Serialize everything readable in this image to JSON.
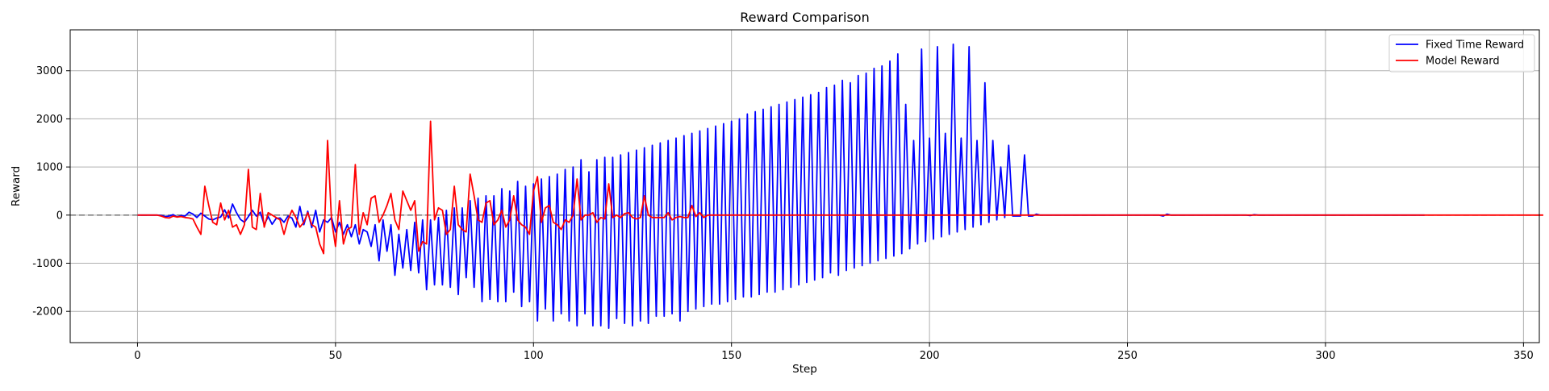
{
  "chart_data": {
    "type": "line",
    "title": "Reward Comparison",
    "xlabel": "Step",
    "ylabel": "Reward",
    "xlim": [
      -17,
      354
    ],
    "ylim": [
      -2650,
      3850
    ],
    "xticks": [
      0,
      50,
      100,
      150,
      200,
      250,
      300,
      350
    ],
    "yticks": [
      -2000,
      -1000,
      0,
      1000,
      2000,
      3000
    ],
    "grid": true,
    "legend_position": "top-right",
    "reference_line": {
      "y": 0,
      "style": "dashed",
      "color": "#808080"
    },
    "series": [
      {
        "name": "Fixed Time Reward",
        "color": "#0000ff",
        "x_start": 0,
        "values": [
          0,
          0,
          0,
          0,
          0,
          0,
          -10,
          -30,
          -20,
          10,
          -40,
          -10,
          -20,
          60,
          20,
          -50,
          40,
          -20,
          -80,
          -100,
          -60,
          -40,
          110,
          -60,
          230,
          50,
          -90,
          -150,
          -30,
          100,
          -20,
          60,
          -200,
          -30,
          -190,
          -70,
          -60,
          -150,
          -20,
          -60,
          -250,
          180,
          -200,
          80,
          -260,
          100,
          -350,
          -100,
          -150,
          -50,
          -350,
          -150,
          -400,
          -200,
          -450,
          -200,
          -600,
          -300,
          -350,
          -650,
          -200,
          -950,
          -100,
          -750,
          -200,
          -1250,
          -400,
          -1100,
          -300,
          -1150,
          -150,
          -1200,
          -100,
          -1550,
          -100,
          -1450,
          -50,
          -1450,
          100,
          -1500,
          150,
          -1650,
          150,
          -1300,
          300,
          -1500,
          350,
          -1800,
          400,
          -1750,
          400,
          -1800,
          550,
          -1800,
          500,
          -1600,
          700,
          -1900,
          600,
          -1800,
          650,
          -2200,
          750,
          -1950,
          800,
          -2200,
          850,
          -2050,
          950,
          -2200,
          1000,
          -2300,
          1150,
          -2050,
          900,
          -2300,
          1150,
          -2300,
          1200,
          -2350,
          1200,
          -2150,
          1250,
          -2250,
          1300,
          -2300,
          1350,
          -2200,
          1400,
          -2250,
          1450,
          -2100,
          1500,
          -2100,
          1550,
          -2050,
          1600,
          -2200,
          1650,
          -2000,
          1700,
          -1950,
          1750,
          -1900,
          1800,
          -1850,
          1850,
          -1850,
          1900,
          -1800,
          1950,
          -1750,
          2000,
          -1700,
          2100,
          -1700,
          2150,
          -1650,
          2200,
          -1600,
          2250,
          -1600,
          2300,
          -1550,
          2350,
          -1500,
          2400,
          -1450,
          2450,
          -1400,
          2500,
          -1350,
          2550,
          -1300,
          2650,
          -1200,
          2700,
          -1250,
          2800,
          -1150,
          2750,
          -1100,
          2900,
          -1050,
          2950,
          -1000,
          3050,
          -950,
          3100,
          -900,
          3200,
          -850,
          3350,
          -800,
          2300,
          -700,
          1550,
          -600,
          3450,
          -550,
          1600,
          -500,
          3500,
          -450,
          1700,
          -400,
          3550,
          -350,
          1600,
          -300,
          3500,
          -250,
          1550,
          -200,
          2750,
          -150,
          1550,
          -100,
          1000,
          -50,
          1450,
          -20,
          -20,
          -20,
          1250,
          -20,
          -20,
          20,
          0,
          0,
          0,
          0,
          0,
          0,
          0,
          0,
          0,
          0,
          0,
          0,
          0,
          0,
          0,
          0,
          0,
          0,
          0,
          0,
          0,
          0,
          0,
          0,
          0,
          0,
          0,
          0,
          0,
          0,
          0,
          -20,
          20,
          0,
          0,
          0,
          0,
          0,
          0,
          0,
          0,
          0,
          0,
          0,
          0,
          0,
          0,
          0,
          0,
          0,
          0,
          0,
          0,
          -10,
          10,
          0,
          0,
          0,
          0,
          0,
          0,
          0,
          0,
          0,
          0,
          0,
          0,
          0,
          0,
          0,
          0,
          0,
          0,
          0,
          0,
          0,
          0,
          0,
          0,
          0,
          0,
          0,
          0,
          0,
          0,
          0,
          0,
          0,
          0,
          0,
          0,
          0,
          0,
          0,
          0,
          0,
          0,
          0
        ]
      },
      {
        "name": "Model Reward",
        "color": "#ff0000",
        "x_start": 0,
        "values": [
          0,
          0,
          0,
          0,
          0,
          0,
          -20,
          -50,
          -60,
          -20,
          -40,
          -30,
          -50,
          -60,
          -80,
          -250,
          -400,
          600,
          200,
          -150,
          -200,
          250,
          -100,
          100,
          -250,
          -200,
          -400,
          -200,
          950,
          -250,
          -300,
          450,
          -250,
          50,
          0,
          -50,
          -100,
          -400,
          -100,
          100,
          -50,
          -250,
          -150,
          50,
          -200,
          -250,
          -600,
          -800,
          1550,
          -100,
          -650,
          300,
          -600,
          -300,
          -250,
          1050,
          -400,
          50,
          -200,
          350,
          400,
          -150,
          0,
          200,
          450,
          -100,
          -300,
          500,
          300,
          100,
          300,
          -750,
          -550,
          -600,
          1950,
          -100,
          150,
          100,
          -400,
          -300,
          600,
          -200,
          -300,
          -350,
          850,
          400,
          -100,
          -150,
          250,
          300,
          -200,
          -100,
          100,
          -250,
          -100,
          400,
          -100,
          -200,
          -250,
          -400,
          500,
          800,
          -150,
          150,
          200,
          -150,
          -200,
          -300,
          -100,
          -150,
          0,
          750,
          -100,
          0,
          0,
          50,
          -150,
          -50,
          -80,
          650,
          -50,
          0,
          -50,
          30,
          50,
          -50,
          -80,
          -50,
          400,
          0,
          -50,
          -50,
          -50,
          -50,
          50,
          -100,
          -50,
          -30,
          -50,
          -50,
          200,
          -30,
          50,
          -50,
          0,
          0,
          0,
          0,
          0,
          0,
          0,
          0,
          0,
          0,
          0,
          0,
          0,
          0,
          0,
          0,
          0,
          0,
          0,
          0,
          0,
          0,
          0,
          0,
          0,
          0,
          0,
          0,
          0,
          0,
          0,
          0,
          0,
          0,
          0,
          0,
          0,
          0,
          0,
          0,
          0,
          0,
          0,
          0,
          0,
          0,
          0,
          0,
          0,
          0,
          0,
          0,
          0,
          0,
          0,
          0,
          0,
          0,
          0,
          0,
          0,
          0,
          0,
          0,
          0,
          0,
          0,
          0,
          0,
          0,
          0,
          0,
          0,
          0,
          0,
          0,
          0,
          0,
          0,
          0,
          0,
          0,
          0,
          0,
          0,
          0,
          0,
          0,
          0,
          0,
          0,
          0,
          0,
          0,
          0,
          0,
          0,
          0,
          0,
          0,
          0,
          0,
          0,
          0,
          0,
          0,
          0,
          0,
          0,
          0,
          0,
          0,
          0,
          0,
          0,
          0,
          0,
          0,
          0,
          0,
          0,
          0,
          0,
          0,
          0,
          0,
          0,
          0,
          0,
          0,
          0,
          0,
          0,
          0,
          0,
          0,
          0,
          0,
          0,
          0,
          0,
          0,
          0,
          0,
          0,
          0,
          0,
          0,
          0,
          0,
          0,
          0,
          0,
          0,
          0,
          0,
          0,
          0,
          0,
          0,
          0,
          0,
          0,
          0,
          0,
          0,
          0,
          0,
          0,
          0,
          0,
          0,
          0,
          0,
          0,
          0,
          0,
          0,
          0,
          0,
          0,
          0,
          0,
          0,
          0,
          0,
          0,
          0,
          0,
          0,
          0,
          0,
          0,
          0,
          0,
          0,
          0,
          0,
          0,
          0,
          0,
          0,
          0,
          0,
          0,
          0,
          0,
          0,
          0,
          0,
          0,
          0
        ]
      }
    ]
  }
}
